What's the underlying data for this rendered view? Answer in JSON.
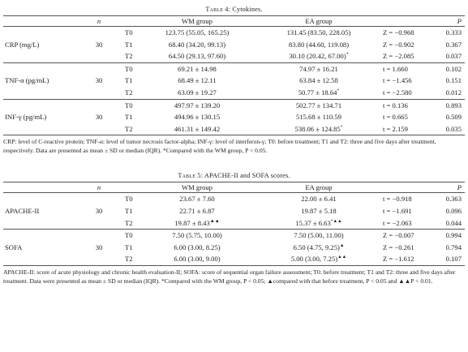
{
  "table4": {
    "caption_prefix": "Table 4:",
    "caption_title": "Cytokines.",
    "headers": {
      "n": "n",
      "wm": "WM group",
      "ea": "EA group",
      "p": "P"
    },
    "groups": [
      {
        "label": "CRP (mg/L)",
        "n": "30",
        "rows": [
          {
            "tp": "T0",
            "wm": "123.75 (55.05, 165.25)",
            "ea": "131.45 (83.50, 228.05)",
            "stat": "Z = −0.968",
            "p": "0.333"
          },
          {
            "tp": "T1",
            "wm": "68.40 (34.20, 99.13)",
            "ea": "83.80 (44.60, 119.08)",
            "stat": "Z = −0.902",
            "p": "0.367"
          },
          {
            "tp": "T2",
            "wm": "64.50 (29.13, 97.60)",
            "ea": "30.10 (20.42, 67.00)",
            "ea_mark": "*",
            "stat": "Z = −2.085",
            "p": "0.037"
          }
        ]
      },
      {
        "label": "TNF-α (pg/mL)",
        "n": "30",
        "rows": [
          {
            "tp": "T0",
            "wm": "69.21 ± 14.98",
            "ea": "74.97 ± 16.21",
            "stat": "t = 1.660",
            "p": "0.102"
          },
          {
            "tp": "T1",
            "wm": "68.49 ± 12.11",
            "ea": "63.84 ± 12.58",
            "stat": "t = −1.456",
            "p": "0.151"
          },
          {
            "tp": "T2",
            "wm": "63.09 ± 19.27",
            "ea": "50.77 ± 18.64",
            "ea_mark": "*",
            "stat": "t = −2.580",
            "p": "0.012"
          }
        ]
      },
      {
        "label": "INF-γ (pg/mL)",
        "n": "30",
        "rows": [
          {
            "tp": "T0",
            "wm": "497.97 ± 139.20",
            "ea": "502.77 ± 134.71",
            "stat": "t = 0.136",
            "p": "0.893"
          },
          {
            "tp": "T1",
            "wm": "494.96 ± 130.15",
            "ea": "515.68 ± 110.59",
            "stat": "t = 0.665",
            "p": "0.509"
          },
          {
            "tp": "T2",
            "wm": "461.31 ± 149.42",
            "ea": "538.06 ± 124.85",
            "ea_mark": "*",
            "stat": "t = 2.159",
            "p": "0.035"
          }
        ]
      }
    ],
    "note": "CRP: level of C-reactive protein; TNF-α: level of tumor necrosis factor-alpha; INF-γ: level of interferon-γ; T0: before treatment; T1 and T2: three and five days after treatment, respectively. Data are presented as mean ± SD or median (IQR). *Compared with the WM group, P < 0.05."
  },
  "table5": {
    "caption_prefix": "Table 5:",
    "caption_title": "APACHE-II and SOFA scores.",
    "headers": {
      "n": "n",
      "wm": "WM group",
      "ea": "EA group",
      "p": "P"
    },
    "groups": [
      {
        "label": "APACHE-II",
        "n": "30",
        "rows": [
          {
            "tp": "T0",
            "wm": "23.67 ± 7.60",
            "ea": "22.00 ± 6.41",
            "stat": "t = −0.918",
            "p": "0.363"
          },
          {
            "tp": "T1",
            "wm": "22.71 ± 6.87",
            "ea": "19.87 ± 5.18",
            "stat": "t = −1.691",
            "p": "0.096"
          },
          {
            "tp": "T2",
            "wm": "19.87 ± 8.43",
            "wm_mark": "▲▲",
            "ea": "15.37 ± 6.63",
            "ea_mark": "*▲▲",
            "stat": "t = −2.063",
            "p": "0.044"
          }
        ]
      },
      {
        "label": "SOFA",
        "n": "30",
        "rows": [
          {
            "tp": "T0",
            "wm": "7.50 (5.75, 10.00)",
            "ea": "7.50 (5.00, 11.00)",
            "stat": "Z = −0.007",
            "p": "0.994"
          },
          {
            "tp": "T1",
            "wm": "6.00 (3.00, 8.25)",
            "ea": "6.50 (4.75, 9.25)",
            "ea_mark": "▲",
            "stat": "Z = −0.261",
            "p": "0.794"
          },
          {
            "tp": "T2",
            "wm": "6.00 (3.00, 9.00)",
            "ea": "5.00 (3.00, 7.25)",
            "ea_mark": "▲▲",
            "stat": "Z = −1.612",
            "p": "0.107"
          }
        ]
      }
    ],
    "note": "APACHE-II: score of acute physiology and chronic health evaluation-II; SOFA: score of sequential organ failure assessment; T0: before treatment; T1 and T2: three and five days after treatment. Data were presented as mean ± SD or median (IQR). *Compared with the WM group, P < 0.05; ▲compared with that before treatment, P < 0.05 and ▲▲P < 0.01."
  }
}
